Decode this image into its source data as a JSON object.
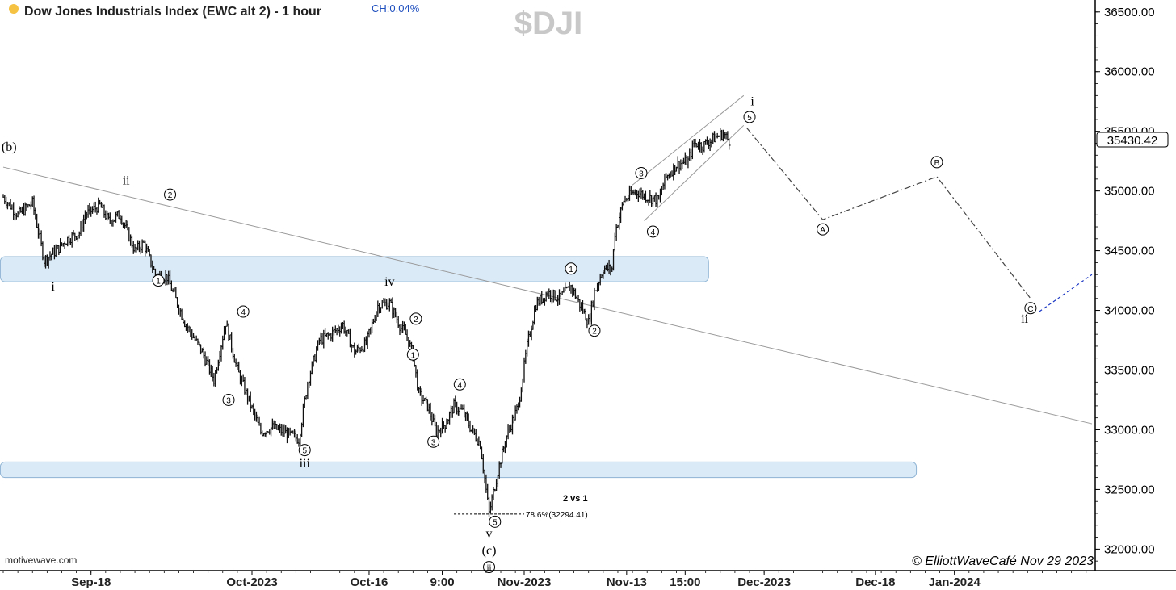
{
  "header": {
    "title": "Dow Jones Industrials Index (EWC alt 2) - 1 hour",
    "change": "CH:0.04%",
    "symbol": "$DJI",
    "status_dot_color": "#f5c242"
  },
  "footer": {
    "source": "motivewave.com",
    "copyright": "© ElliottWaveCafé Nov 29 2023"
  },
  "chart_data": {
    "type": "ohlc",
    "y_axis": {
      "side": "right",
      "ticks": [
        32000,
        32500,
        33000,
        33500,
        34000,
        34500,
        35000,
        35500,
        36000,
        36500
      ],
      "tick_labels": [
        "32000.00",
        "32500.00",
        "33000.00",
        "33500.00",
        "34000.00",
        "34500.00",
        "35000.00",
        "35500.00",
        "36000.00",
        "36500.00"
      ],
      "ylim": [
        31820,
        36600
      ]
    },
    "x_axis": {
      "ticks": [
        {
          "label": "Sep-18",
          "i": 30
        },
        {
          "label": "Oct-2023",
          "i": 85
        },
        {
          "label": "Oct-16",
          "i": 125
        },
        {
          "label": "9:00",
          "i": 150
        },
        {
          "label": "Nov-2023",
          "i": 178
        },
        {
          "label": "Nov-13",
          "i": 213
        },
        {
          "label": "15:00",
          "i": 233
        },
        {
          "label": "Dec-2023",
          "i": 260
        },
        {
          "label": "Dec-18",
          "i": 298
        },
        {
          "label": "Jan-2024",
          "i": 325
        }
      ]
    },
    "last_price": "35430.42",
    "bar_color": "#111111",
    "price_path": [
      [
        0,
        34950
      ],
      [
        5,
        34800
      ],
      [
        10,
        34900
      ],
      [
        14,
        34420
      ],
      [
        18,
        34500
      ],
      [
        22,
        34600
      ],
      [
        26,
        34650
      ],
      [
        28,
        34800
      ],
      [
        33,
        34880
      ],
      [
        36,
        34750
      ],
      [
        40,
        34800
      ],
      [
        45,
        34500
      ],
      [
        48,
        34560
      ],
      [
        52,
        34300
      ],
      [
        56,
        34280
      ],
      [
        62,
        33900
      ],
      [
        68,
        33650
      ],
      [
        72,
        33420
      ],
      [
        76,
        33900
      ],
      [
        80,
        33500
      ],
      [
        88,
        32980
      ],
      [
        92,
        33020
      ],
      [
        96,
        32980
      ],
      [
        101,
        32920
      ],
      [
        104,
        33400
      ],
      [
        108,
        33750
      ],
      [
        112,
        33800
      ],
      [
        116,
        33880
      ],
      [
        120,
        33650
      ],
      [
        124,
        33720
      ],
      [
        128,
        34040
      ],
      [
        132,
        34060
      ],
      [
        136,
        33850
      ],
      [
        138,
        33780
      ],
      [
        140,
        33620
      ],
      [
        142,
        33300
      ],
      [
        145,
        33200
      ],
      [
        148,
        32980
      ],
      [
        151,
        33050
      ],
      [
        154,
        33200
      ],
      [
        157,
        33150
      ],
      [
        160,
        33000
      ],
      [
        163,
        32880
      ],
      [
        166,
        32300
      ],
      [
        169,
        32650
      ],
      [
        172,
        32950
      ],
      [
        176,
        33200
      ],
      [
        179,
        33700
      ],
      [
        182,
        34050
      ],
      [
        186,
        34150
      ],
      [
        190,
        34100
      ],
      [
        194,
        34200
      ],
      [
        197,
        34050
      ],
      [
        200,
        33900
      ],
      [
        202,
        34150
      ],
      [
        205,
        34350
      ],
      [
        208,
        34350
      ],
      [
        209,
        34650
      ],
      [
        212,
        34920
      ],
      [
        216,
        35000
      ],
      [
        220,
        34950
      ],
      [
        224,
        34920
      ],
      [
        226,
        35100
      ],
      [
        230,
        35220
      ],
      [
        234,
        35250
      ],
      [
        236,
        35400
      ],
      [
        239,
        35380
      ],
      [
        242,
        35430
      ],
      [
        246,
        35480
      ],
      [
        248,
        35420
      ]
    ],
    "channels": [
      {
        "type": "trendline",
        "from": [
          0,
          35200
        ],
        "to": [
          372,
          33050
        ]
      },
      {
        "type": "channel_upper",
        "from": [
          215,
          35050
        ],
        "to": [
          253,
          35800
        ]
      },
      {
        "type": "channel_lower",
        "from": [
          219,
          34750
        ],
        "to": [
          253,
          35550
        ]
      }
    ],
    "zones": [
      {
        "from_i": -1,
        "to_i": 241,
        "low": 34240,
        "high": 34450,
        "color": "#daeaf7"
      },
      {
        "from_i": -1,
        "to_i": 312,
        "low": 32600,
        "high": 32730,
        "color": "#daeaf7"
      }
    ],
    "projection": {
      "points": [
        [
          254,
          35530
        ],
        [
          280,
          34760
        ],
        [
          319,
          35120
        ],
        [
          351,
          34100
        ]
      ],
      "labels": [
        "A",
        "B",
        "C"
      ],
      "extension": {
        "from": [
          354,
          33990
        ],
        "to": [
          372,
          34300
        ],
        "color": "#1a36c4"
      }
    },
    "fib": {
      "level": 32294.41,
      "from_i": 154,
      "to_i": 178,
      "label": "78.6%(32294.41)",
      "note": "2 vs 1"
    },
    "wave_labels": [
      {
        "text": "(b)",
        "i": 2,
        "p": 35370,
        "style": "roman"
      },
      {
        "text": "ii",
        "i": 42,
        "p": 35090,
        "style": "roman"
      },
      {
        "text": "i",
        "i": 17,
        "p": 34200,
        "style": "roman"
      },
      {
        "text": "2",
        "i": 57,
        "p": 34970,
        "style": "circle"
      },
      {
        "text": "1",
        "i": 53,
        "p": 34250,
        "style": "circle"
      },
      {
        "text": "4",
        "i": 82,
        "p": 33990,
        "style": "circle"
      },
      {
        "text": "3",
        "i": 77,
        "p": 33250,
        "style": "circle"
      },
      {
        "text": "5",
        "i": 103,
        "p": 32830,
        "style": "circle"
      },
      {
        "text": "iii",
        "i": 103,
        "p": 32720,
        "style": "roman"
      },
      {
        "text": "iv",
        "i": 132,
        "p": 34240,
        "style": "roman"
      },
      {
        "text": "2",
        "i": 141,
        "p": 33930,
        "style": "circle"
      },
      {
        "text": "1",
        "i": 140,
        "p": 33630,
        "style": "circle"
      },
      {
        "text": "4",
        "i": 156,
        "p": 33380,
        "style": "circle"
      },
      {
        "text": "3",
        "i": 147,
        "p": 32900,
        "style": "circle"
      },
      {
        "text": "5",
        "i": 168,
        "p": 32230,
        "style": "circle"
      },
      {
        "text": "v",
        "i": 166,
        "p": 32130,
        "style": "roman"
      },
      {
        "text": "(c)",
        "i": 166,
        "p": 31990,
        "style": "roman"
      },
      {
        "text": "ii",
        "i": 166,
        "p": 31850,
        "style": "circleroman"
      },
      {
        "text": "1",
        "i": 194,
        "p": 34350,
        "style": "circle"
      },
      {
        "text": "2",
        "i": 202,
        "p": 33830,
        "style": "circle"
      },
      {
        "text": "3",
        "i": 218,
        "p": 35150,
        "style": "circle"
      },
      {
        "text": "4",
        "i": 222,
        "p": 34660,
        "style": "circle"
      },
      {
        "text": "i",
        "i": 256,
        "p": 35750,
        "style": "roman"
      },
      {
        "text": "5",
        "i": 255,
        "p": 35620,
        "style": "circle"
      },
      {
        "text": "ii",
        "i": 349,
        "p": 33930,
        "style": "roman"
      }
    ]
  }
}
